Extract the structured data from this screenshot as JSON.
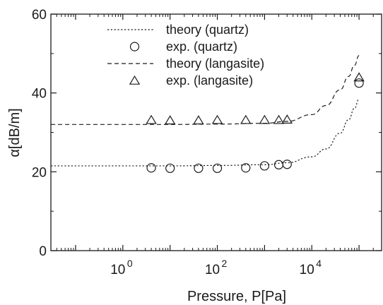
{
  "chart_data": {
    "type": "scatter",
    "xlabel": "Pressure, P[Pa]",
    "ylabel": "α[dB/m]",
    "x_scale": "log",
    "xlim": [
      0.03,
      300000
    ],
    "ylim": [
      0,
      60
    ],
    "x_ticks": [
      {
        "value": 1,
        "mantissa": "10",
        "exponent": "0"
      },
      {
        "value": 100,
        "mantissa": "10",
        "exponent": "2"
      },
      {
        "value": 10000,
        "mantissa": "10",
        "exponent": "4"
      }
    ],
    "y_ticks": [
      0,
      20,
      40,
      60
    ],
    "y_tick_labels": [
      "0",
      "20",
      "40",
      "60"
    ],
    "grid": false,
    "legend_position": "top-center",
    "legend": [
      {
        "label": "theory (quartz)",
        "style": "dotted-line"
      },
      {
        "label": "exp. (quartz)",
        "style": "circle"
      },
      {
        "label": "theory (langasite)",
        "style": "dashed-line"
      },
      {
        "label": "exp. (langasite)",
        "style": "triangle"
      }
    ],
    "series": [
      {
        "name": "theory (quartz)",
        "kind": "line",
        "dash": "dotted",
        "x": [
          0.03,
          1,
          10,
          100,
          1000,
          3000,
          10000,
          20000,
          40000,
          60000,
          80000,
          100000
        ],
        "y": [
          21.5,
          21.5,
          21.5,
          21.6,
          21.8,
          22.3,
          23.8,
          25.8,
          29.8,
          33.2,
          36.1,
          38.5
        ]
      },
      {
        "name": "exp. (quartz)",
        "kind": "scatter",
        "marker": "circle",
        "x": [
          4,
          10,
          40,
          100,
          400,
          1000,
          2000,
          3000,
          100000
        ],
        "y": [
          21,
          20.9,
          20.9,
          20.9,
          21,
          21.5,
          21.8,
          21.9,
          42.5
        ]
      },
      {
        "name": "theory (langasite)",
        "kind": "line",
        "dash": "dashed",
        "x": [
          0.03,
          1,
          10,
          100,
          1000,
          3000,
          10000,
          20000,
          40000,
          60000,
          80000,
          100000
        ],
        "y": [
          32,
          32,
          32,
          32.1,
          32.3,
          32.8,
          34.5,
          36.8,
          40.8,
          44.2,
          47,
          49.5
        ]
      },
      {
        "name": "exp. (langasite)",
        "kind": "scatter",
        "marker": "triangle",
        "x": [
          4,
          10,
          40,
          100,
          400,
          1000,
          2000,
          3000,
          100000
        ],
        "y": [
          33,
          32.9,
          32.9,
          33,
          33,
          33,
          33,
          33.1,
          43.8
        ]
      }
    ],
    "colors": {
      "ink": "#1a1a1a",
      "background": "#ffffff"
    }
  }
}
